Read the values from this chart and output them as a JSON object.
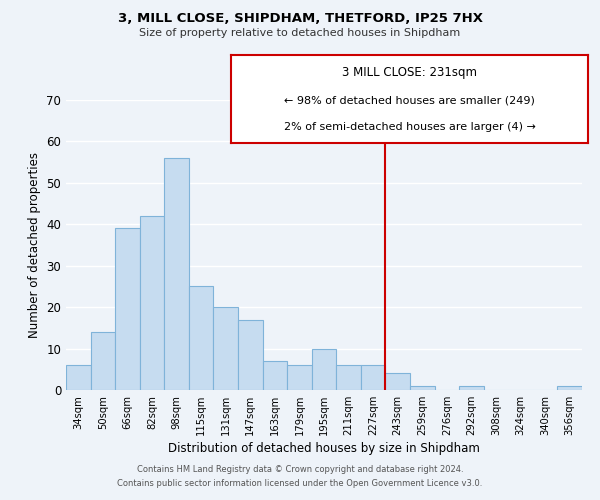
{
  "title": "3, MILL CLOSE, SHIPDHAM, THETFORD, IP25 7HX",
  "subtitle": "Size of property relative to detached houses in Shipdham",
  "xlabel": "Distribution of detached houses by size in Shipdham",
  "ylabel": "Number of detached properties",
  "bin_labels": [
    "34sqm",
    "50sqm",
    "66sqm",
    "82sqm",
    "98sqm",
    "115sqm",
    "131sqm",
    "147sqm",
    "163sqm",
    "179sqm",
    "195sqm",
    "211sqm",
    "227sqm",
    "243sqm",
    "259sqm",
    "276sqm",
    "292sqm",
    "308sqm",
    "324sqm",
    "340sqm",
    "356sqm"
  ],
  "bar_heights": [
    6,
    14,
    39,
    42,
    56,
    25,
    20,
    17,
    7,
    6,
    10,
    6,
    6,
    4,
    1,
    0,
    1,
    0,
    0,
    0,
    1
  ],
  "bar_color": "#c6dcf0",
  "bar_edge_color": "#7fb3d9",
  "highlight_line_color": "#cc0000",
  "legend_title": "3 MILL CLOSE: 231sqm",
  "legend_line1": "← 98% of detached houses are smaller (249)",
  "legend_line2": "2% of semi-detached houses are larger (4) →",
  "ylim": [
    0,
    70
  ],
  "yticks": [
    0,
    10,
    20,
    30,
    40,
    50,
    60,
    70
  ],
  "footer_line1": "Contains HM Land Registry data © Crown copyright and database right 2024.",
  "footer_line2": "Contains public sector information licensed under the Open Government Licence v3.0.",
  "background_color": "#eef3f9"
}
